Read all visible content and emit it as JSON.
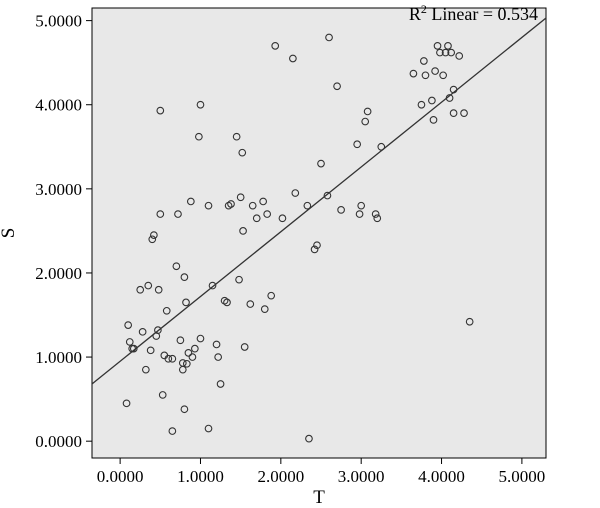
{
  "chart_data": {
    "type": "scatter",
    "xlabel": "T",
    "ylabel": "S",
    "xlim": [
      -0.35,
      5.3
    ],
    "ylim": [
      -0.2,
      5.15
    ],
    "x_ticks": [
      "0.0000",
      "1.0000",
      "2.0000",
      "3.0000",
      "4.0000",
      "5.0000"
    ],
    "y_ticks": [
      "0.0000",
      "1.0000",
      "2.0000",
      "3.0000",
      "4.0000",
      "5.0000"
    ],
    "annotation": {
      "base": "R",
      "superscript": "2",
      "rest": " Linear = 0.534"
    },
    "fit_line": {
      "intercept": 0.95,
      "slope": 0.77
    },
    "plot_background": "#e8e8e8",
    "marker_color": "#333333",
    "series": [
      {
        "x": [
          0.08,
          0.1,
          0.12,
          0.15,
          0.17,
          0.25,
          0.28,
          0.32,
          0.35,
          0.38,
          0.4,
          0.42,
          0.45,
          0.47,
          0.48,
          0.5,
          0.5,
          0.53,
          0.55,
          0.58,
          0.6,
          0.65,
          0.65,
          0.7,
          0.72,
          0.75,
          0.78,
          0.78,
          0.8,
          0.8,
          0.82,
          0.83,
          0.85,
          0.88,
          0.9,
          0.93,
          0.98,
          1.0,
          1.0,
          1.1,
          1.1,
          1.15,
          1.2,
          1.22,
          1.25,
          1.3,
          1.33,
          1.35,
          1.38,
          1.45,
          1.48,
          1.5,
          1.52,
          1.53,
          1.55,
          1.62,
          1.65,
          1.7,
          1.78,
          1.8,
          1.83,
          1.88,
          1.93,
          2.02,
          2.15,
          2.18,
          2.33,
          2.35,
          2.42,
          2.45,
          2.5,
          2.58,
          2.6,
          2.7,
          2.75,
          2.95,
          2.98,
          3.0,
          3.05,
          3.08,
          3.18,
          3.2,
          3.25,
          3.65,
          3.75,
          3.78,
          3.8,
          3.88,
          3.9,
          3.92,
          3.95,
          3.98,
          4.02,
          4.05,
          4.08,
          4.1,
          4.12,
          4.15,
          4.15,
          4.22,
          4.28,
          4.35
        ],
        "y": [
          0.45,
          1.38,
          1.18,
          1.1,
          1.1,
          1.8,
          1.3,
          0.85,
          1.85,
          1.08,
          2.4,
          2.45,
          1.25,
          1.32,
          1.8,
          2.7,
          3.93,
          0.55,
          1.02,
          1.55,
          0.98,
          0.12,
          0.98,
          2.08,
          2.7,
          1.2,
          0.85,
          0.93,
          1.95,
          0.38,
          1.65,
          0.92,
          1.05,
          2.85,
          1.0,
          1.1,
          3.62,
          4.0,
          1.22,
          2.8,
          0.15,
          1.85,
          1.15,
          1.0,
          0.68,
          1.67,
          1.65,
          2.8,
          2.82,
          3.62,
          1.92,
          2.9,
          3.43,
          2.5,
          1.12,
          1.63,
          2.8,
          2.65,
          2.85,
          1.57,
          2.7,
          1.73,
          4.7,
          2.65,
          4.55,
          2.95,
          2.8,
          0.03,
          2.28,
          2.33,
          3.3,
          2.92,
          4.8,
          4.22,
          2.75,
          3.53,
          2.7,
          2.8,
          3.8,
          3.92,
          2.7,
          2.65,
          3.5,
          4.37,
          4.0,
          4.52,
          4.35,
          4.05,
          3.82,
          4.4,
          4.7,
          4.62,
          4.35,
          4.62,
          4.7,
          4.08,
          4.62,
          4.18,
          3.9,
          4.58,
          3.9,
          1.42
        ]
      }
    ]
  }
}
